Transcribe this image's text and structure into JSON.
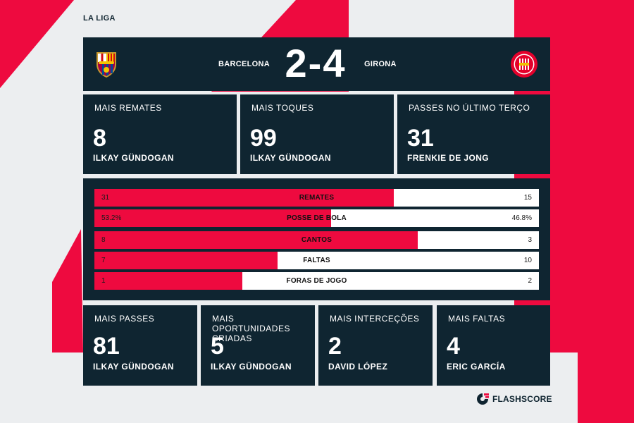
{
  "league": "LA LIGA",
  "match": {
    "home_team": "BARCELONA",
    "away_team": "GIRONA",
    "score": "2-4",
    "home_crest": "barcelona-crest-icon",
    "away_crest": "girona-crest-icon"
  },
  "top_leaders": [
    {
      "title": "MAIS REMATES",
      "value": "8",
      "player": "ILKAY GÜNDOGAN"
    },
    {
      "title": "MAIS TOQUES",
      "value": "99",
      "player": "ILKAY GÜNDOGAN"
    },
    {
      "title": "PASSES NO ÚLTIMO TERÇO",
      "value": "31",
      "player": "FRENKIE DE JONG"
    }
  ],
  "stats": [
    {
      "label": "REMATES",
      "home": "31",
      "away": "15",
      "home_share": 0.674
    },
    {
      "label": "POSSE DE BOLA",
      "home": "53.2%",
      "away": "46.8%",
      "home_share": 0.532
    },
    {
      "label": "CANTOS",
      "home": "8",
      "away": "3",
      "home_share": 0.727
    },
    {
      "label": "FALTAS",
      "home": "7",
      "away": "10",
      "home_share": 0.412
    },
    {
      "label": "FORAS DE JOGO",
      "home": "1",
      "away": "2",
      "home_share": 0.333
    }
  ],
  "bottom_leaders": [
    {
      "title": "MAIS PASSES",
      "value": "81",
      "player": "ILKAY GÜNDOGAN"
    },
    {
      "title": "MAIS OPORTUNIDADES CRIADAS",
      "value": "5",
      "player": "ILKAY GÜNDOGAN"
    },
    {
      "title": "MAIS INTERCEÇÕES",
      "value": "2",
      "player": "DAVID LÓPEZ"
    },
    {
      "title": "MAIS FALTAS",
      "value": "4",
      "player": "ERIC GARCÍA"
    }
  ],
  "brand": {
    "name": "FLASHSCORE",
    "icon": "flashscore-logo-icon"
  },
  "colors": {
    "accent": "#ee0a3f",
    "panel": "#0f2531",
    "background": "#eceef0"
  }
}
